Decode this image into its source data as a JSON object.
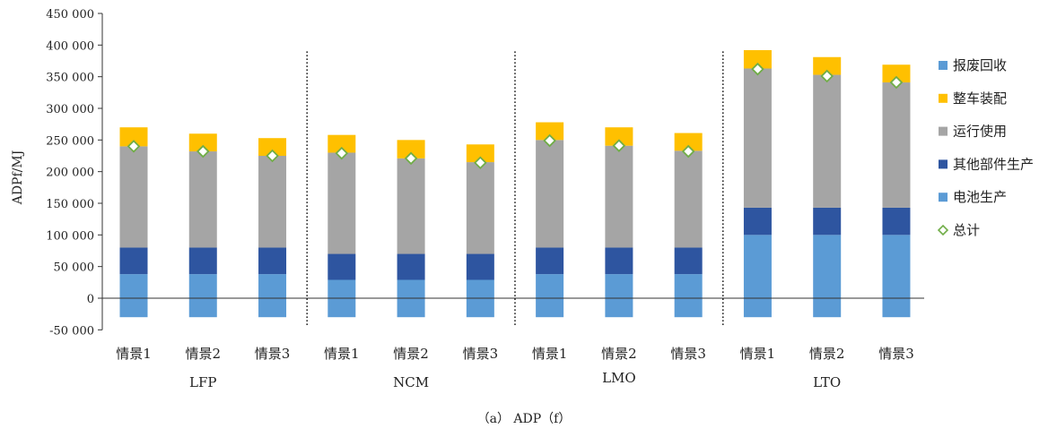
{
  "chart_data": {
    "type": "bar",
    "stacked": true,
    "ylabel": "ADPf/MJ",
    "caption": "（a） ADP（f）",
    "ylim": [
      -50000,
      450000
    ],
    "yticks": [
      -50000,
      0,
      50000,
      100000,
      150000,
      200000,
      250000,
      300000,
      350000,
      400000,
      450000
    ],
    "ytick_labels": [
      "-50 000",
      "0",
      "50 000",
      "100 000",
      "150 000",
      "200 000",
      "250 000",
      "300 000",
      "350 000",
      "400 000",
      "450 000"
    ],
    "categories": [
      "情景1",
      "情景2",
      "情景3",
      "情景1",
      "情景2",
      "情景3",
      "情景1",
      "情景2",
      "情景3",
      "情景1",
      "情景2",
      "情景3"
    ],
    "groups": [
      {
        "label": "LFP",
        "indices": [
          0,
          1,
          2
        ]
      },
      {
        "label": "NCM",
        "indices": [
          3,
          4,
          5
        ]
      },
      {
        "label": "LMO",
        "indices": [
          6,
          7,
          8
        ]
      },
      {
        "label": "LTO",
        "indices": [
          9,
          10,
          11
        ]
      }
    ],
    "series": [
      {
        "name": "报废回收",
        "color": "#5b9bd5",
        "values": [
          -30000,
          -30000,
          -30000,
          -30000,
          -30000,
          -30000,
          -30000,
          -30000,
          -30000,
          -30000,
          -30000,
          -30000
        ]
      },
      {
        "name": "电池生产",
        "color": "#5b9bd5",
        "values": [
          38000,
          38000,
          38000,
          29000,
          29000,
          29000,
          38000,
          38000,
          38000,
          100000,
          100000,
          100000
        ]
      },
      {
        "name": "其他部件生产",
        "color": "#2e55a0",
        "values": [
          42000,
          42000,
          42000,
          41000,
          41000,
          41000,
          42000,
          42000,
          42000,
          43000,
          43000,
          43000
        ]
      },
      {
        "name": "运行使用",
        "color": "#a5a5a5",
        "values": [
          160000,
          152000,
          145000,
          160000,
          151000,
          145000,
          170000,
          161000,
          153000,
          220000,
          210000,
          198000
        ]
      },
      {
        "name": "整车装配",
        "color": "#ffc000",
        "values": [
          30000,
          28000,
          28000,
          28000,
          29000,
          28000,
          28000,
          29000,
          28000,
          29000,
          28000,
          28000
        ]
      },
      {
        "name": "总计",
        "type": "marker",
        "color": "#70ad47",
        "values": [
          240000,
          232000,
          225000,
          229000,
          221000,
          214000,
          249000,
          241000,
          232000,
          362000,
          351000,
          341000
        ]
      }
    ],
    "legend_order": [
      "报废回收",
      "整车装配",
      "运行使用",
      "其他部件生产",
      "电池生产",
      "总计"
    ],
    "legend_position": "right",
    "group_separators": "dotted vertical lines between groups"
  }
}
